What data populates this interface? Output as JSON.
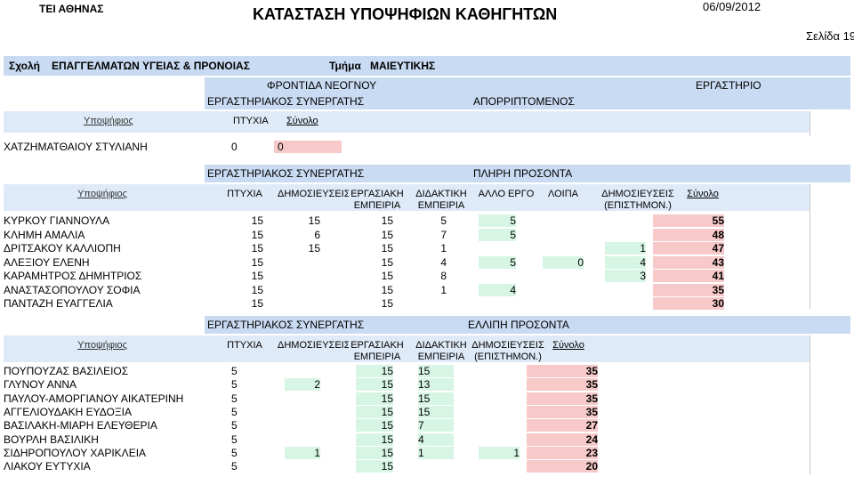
{
  "header": {
    "institution": "ΤΕΙ ΑΘΗΝΑΣ",
    "title": "ΚΑΤΑΣΤΑΣΗ ΥΠΟΨΗΦΙΩΝ ΚΑΘΗΓΗΤΩΝ",
    "date": "06/09/2012",
    "page": "Σελίδα 19"
  },
  "filter": {
    "school_label": "Σχολή",
    "school": "ΕΠΑΓΓΕΛΜΑΤΩΝ ΥΓΕΙΑΣ & ΠΡΟΝΟΙΑΣ",
    "dept_label": "Τμήμα",
    "dept": "ΜΑΙΕΥΤΙΚΗΣ"
  },
  "course_band": {
    "course": "ΦΡΟΝΤΙΔΑ ΝΕΟΓΝΟΥ",
    "type": "ΕΡΓΑΣΤΗΡΙΟ",
    "position": "ΕΡΓΑΣΤΗΡΙΑΚΟΣ ΣΥΝΕΡΓΑΤΗΣ",
    "status": "ΑΠΟΡΡΙΠΤΟΜΕΝΟΣ"
  },
  "rejected": {
    "headers": {
      "candidate": "Υποψήφιος",
      "degree": "ΠΤΥΧΙΑ",
      "total": "Σύνολο"
    },
    "rows": [
      {
        "name": "ΧΑΤΖΗΜΑΤΘΑΙΟΥ ΣΤΥΛΙΑΝΗ",
        "degree": "0",
        "total": "0"
      }
    ]
  },
  "full": {
    "position": "ΕΡΓΑΣΤΗΡΙΑΚΟΣ ΣΥΝΕΡΓΑΤΗΣ",
    "status": "ΠΛΗΡΗ ΠΡΟΣΟΝΤΑ",
    "headers": {
      "candidate": "Υποψήφιος",
      "degree": "ΠΤΥΧΙΑ",
      "pubs": "ΔΗΜΟΣΙΕΥΣΕΙΣ",
      "work1": "ΕΡΓΑΣΙΑΚΗ",
      "work2": "ΕΜΠΕΙΡΙΑ",
      "teach1": "ΔΙΔΑΚΤΙΚΗ",
      "teach2": "ΕΜΠΕΙΡΙΑ",
      "other": "ΑΛΛΟ ΕΡΓΟ",
      "misc": "ΛΟΙΠΑ",
      "spubs1": "ΔΗΜΟΣΙΕΥΣΕΙΣ",
      "spubs2": "(ΕΠΙΣΤΗΜΟΝ.)",
      "total": "Σύνολο"
    },
    "rows": [
      {
        "name": "ΚΥΡΚΟΥ ΓΙΑΝΝΟΥΛΑ",
        "degree": "15",
        "pubs": "15",
        "work": "15",
        "teach": "5",
        "other": "5",
        "misc": "",
        "spubs": "",
        "total": "55"
      },
      {
        "name": "ΚΛΗΜΗ ΑΜΑΛΙΑ",
        "degree": "15",
        "pubs": "6",
        "work": "15",
        "teach": "7",
        "other": "5",
        "misc": "",
        "spubs": "",
        "total": "48"
      },
      {
        "name": "ΔΡΙΤΣΑΚΟΥ ΚΑΛΛΙΟΠΗ",
        "degree": "15",
        "pubs": "15",
        "work": "15",
        "teach": "1",
        "other": "",
        "misc": "",
        "spubs": "1",
        "total": "47"
      },
      {
        "name": "ΑΛΕΞΙΟΥ ΕΛΕΝΗ",
        "degree": "15",
        "pubs": "",
        "work": "15",
        "teach": "4",
        "other": "5",
        "misc": "0",
        "spubs": "4",
        "total": "43"
      },
      {
        "name": "ΚΑΡΑΜΗΤΡΟΣ ΔΗΜΗΤΡΙΟΣ",
        "degree": "15",
        "pubs": "",
        "work": "15",
        "teach": "8",
        "other": "",
        "misc": "",
        "spubs": "3",
        "total": "41"
      },
      {
        "name": "ΑΝΑΣΤΑΣΟΠΟΥΛΟΥ ΣΟΦΙΑ",
        "degree": "15",
        "pubs": "",
        "work": "15",
        "teach": "1",
        "other": "4",
        "misc": "",
        "spubs": "",
        "total": "35"
      },
      {
        "name": "ΠΑΝΤΑΖΗ ΕΥΑΓΓΕΛΙΑ",
        "degree": "15",
        "pubs": "",
        "work": "15",
        "teach": "",
        "other": "",
        "misc": "",
        "spubs": "",
        "total": "30"
      }
    ]
  },
  "lacking": {
    "position": "ΕΡΓΑΣΤΗΡΙΑΚΟΣ ΣΥΝΕΡΓΑΤΗΣ",
    "status": "ΕΛΛΙΠΗ ΠΡΟΣΟΝΤΑ",
    "headers": {
      "candidate": "Υποψήφιος",
      "degree": "ΠΤΥΧΙΑ",
      "pubs": "ΔΗΜΟΣΙΕΥΣΕΙΣ",
      "work1": "ΕΡΓΑΣΙΑΚΗ",
      "work2": "ΕΜΠΕΙΡΙΑ",
      "teach1": "ΔΙΔΑΚΤΙΚΗ",
      "teach2": "ΕΜΠΕΙΡΙΑ",
      "spubs1": "ΔΗΜΟΣΙΕΥΣΕΙΣ",
      "spubs2": "(ΕΠΙΣΤΗΜΟΝ.)",
      "total": "Σύνολο"
    },
    "rows": [
      {
        "name": "ΠΟΥΠΟΥΖΑΣ ΒΑΣΙΛΕΙΟΣ",
        "degree": "5",
        "pubs": "",
        "work": "15",
        "teach": "15",
        "spubs": "",
        "total": "35"
      },
      {
        "name": "ΓΛΥΝΟΥ ΑΝΝΑ",
        "degree": "5",
        "pubs": "2",
        "work": "15",
        "teach": "13",
        "spubs": "",
        "total": "35"
      },
      {
        "name": "ΠΑΥΛΟΥ-ΑΜΟΡΓΙΑΝΟΥ ΑΙΚΑΤΕΡΙΝΗ",
        "degree": "5",
        "pubs": "",
        "work": "15",
        "teach": "15",
        "spubs": "",
        "total": "35"
      },
      {
        "name": "ΑΓΓΕΛΙΟΥΔΑΚΗ ΕΥΔΟΞΙΑ",
        "degree": "5",
        "pubs": "",
        "work": "15",
        "teach": "15",
        "spubs": "",
        "total": "35"
      },
      {
        "name": "ΒΑΣΙΛΑΚΗ-ΜΙΑΡΗ ΕΛΕΥΘΕΡΙΑ",
        "degree": "5",
        "pubs": "",
        "work": "15",
        "teach": "7",
        "spubs": "",
        "total": "27"
      },
      {
        "name": "ΒΟΥΡΛΗ ΒΑΣΙΛΙΚΗ",
        "degree": "5",
        "pubs": "",
        "work": "15",
        "teach": "4",
        "spubs": "",
        "total": "24"
      },
      {
        "name": "ΣΙΔΗΡΟΠΟΥΛΟΥ ΧΑΡΙΚΛΕΙΑ",
        "degree": "5",
        "pubs": "1",
        "work": "15",
        "teach": "1",
        "spubs": "1",
        "total": "23"
      },
      {
        "name": "ΛΙΑΚΟΥ ΕΥΤΥΧΙΑ",
        "degree": "5",
        "pubs": "",
        "work": "15",
        "teach": "",
        "spubs": "",
        "total": "20"
      }
    ]
  }
}
